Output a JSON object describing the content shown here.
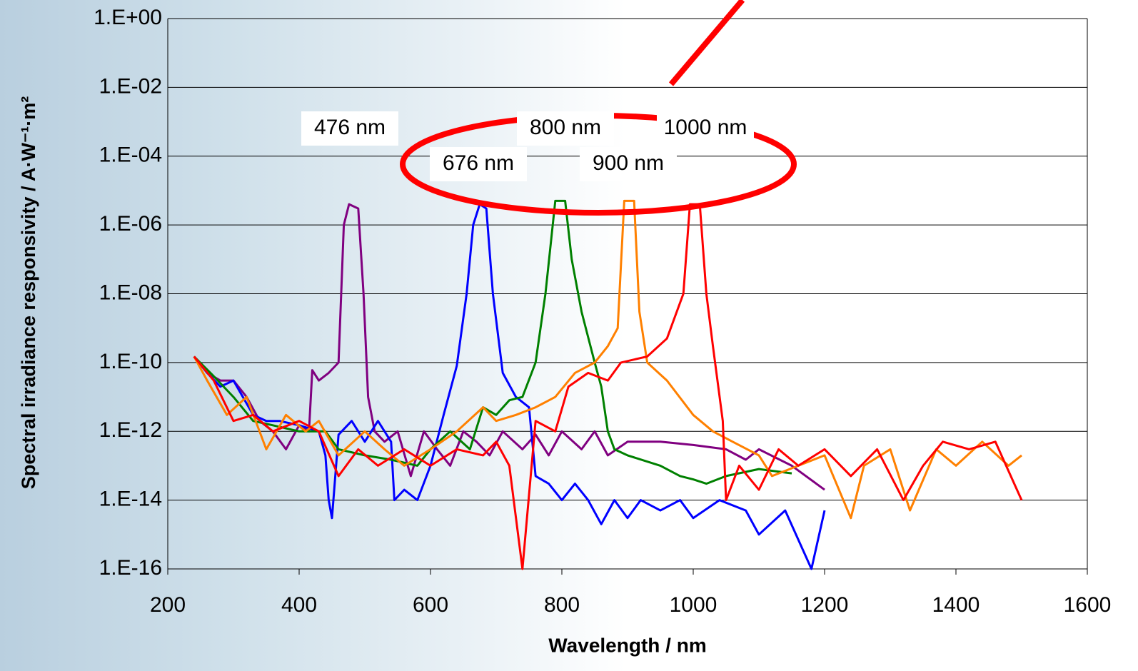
{
  "chart_data": {
    "type": "line",
    "xlabel": "Wavelength / nm",
    "ylabel": "Spectral irradiance responsivity / A·W⁻¹·m²",
    "xlim": [
      200,
      1600
    ],
    "xticks": [
      200,
      400,
      600,
      800,
      1000,
      1200,
      1400,
      1600
    ],
    "ylim": [
      1e-16,
      1
    ],
    "log_y": true,
    "grid": true,
    "yticks": [
      {
        "value": 1e-16,
        "label": "1.E-16"
      },
      {
        "value": 1e-14,
        "label": "1.E-14"
      },
      {
        "value": 1e-12,
        "label": "1.E-12"
      },
      {
        "value": 1e-10,
        "label": "1.E-10"
      },
      {
        "value": 1e-08,
        "label": "1.E-08"
      },
      {
        "value": 1e-06,
        "label": "1.E-06"
      },
      {
        "value": 0.0001,
        "label": "1.E-04"
      },
      {
        "value": 0.01,
        "label": "1.E-02"
      },
      {
        "value": 1,
        "label": "1.E+00"
      }
    ],
    "series": [
      {
        "name": "476 nm",
        "color": "#800080",
        "x": [
          240,
          260,
          280,
          300,
          320,
          340,
          360,
          380,
          400,
          415,
          420,
          430,
          445,
          460,
          468,
          476,
          490,
          498,
          505,
          515,
          530,
          550,
          570,
          590,
          610,
          630,
          650,
          670,
          690,
          710,
          740,
          760,
          780,
          800,
          830,
          850,
          870,
          900,
          950,
          1000,
          1050,
          1080,
          1100,
          1150,
          1200
        ],
        "values": [
          1.5e-10,
          5e-11,
          3e-11,
          3e-11,
          1e-11,
          2e-12,
          1e-12,
          3e-13,
          1.5e-12,
          1e-12,
          6e-11,
          3e-11,
          5e-11,
          1e-10,
          1e-06,
          4e-06,
          3e-06,
          1e-08,
          1e-11,
          1e-12,
          5e-13,
          1e-12,
          5e-14,
          1e-12,
          3e-13,
          1e-13,
          1e-12,
          5e-13,
          2e-13,
          1e-12,
          3e-13,
          8e-13,
          2e-13,
          1e-12,
          3e-13,
          1e-12,
          2e-13,
          5e-13,
          5e-13,
          4e-13,
          3e-13,
          1.5e-13,
          3e-13,
          1e-13,
          2e-14
        ]
      },
      {
        "name": "676 nm",
        "color": "#0000ff",
        "x": [
          240,
          260,
          280,
          300,
          330,
          350,
          370,
          400,
          430,
          440,
          445,
          450,
          460,
          480,
          500,
          520,
          540,
          545,
          560,
          580,
          600,
          620,
          640,
          655,
          665,
          675,
          685,
          695,
          710,
          730,
          750,
          760,
          780,
          800,
          820,
          840,
          860,
          880,
          900,
          920,
          950,
          980,
          1000,
          1040,
          1080,
          1100,
          1140,
          1180,
          1200
        ],
        "values": [
          1.5e-10,
          5e-11,
          2e-11,
          3e-11,
          3e-12,
          2e-12,
          2e-12,
          1.5e-12,
          1e-12,
          2e-13,
          1e-14,
          3e-15,
          8e-13,
          2e-12,
          5e-13,
          2e-12,
          5e-13,
          1e-14,
          2e-14,
          1e-14,
          1e-13,
          3e-12,
          8e-11,
          1e-08,
          1e-06,
          4e-06,
          3e-06,
          1e-08,
          5e-11,
          1e-11,
          5e-12,
          5e-14,
          3e-14,
          1e-14,
          3e-14,
          1e-14,
          2e-15,
          1e-14,
          3e-15,
          1e-14,
          5e-15,
          1e-14,
          3e-15,
          1e-14,
          5e-15,
          1e-15,
          5e-15,
          1e-16,
          5e-15
        ]
      },
      {
        "name": "800 nm",
        "color": "#008000",
        "x": [
          240,
          270,
          300,
          330,
          360,
          400,
          440,
          460,
          500,
          540,
          580,
          600,
          630,
          660,
          680,
          700,
          720,
          740,
          760,
          775,
          790,
          805,
          815,
          830,
          850,
          860,
          870,
          880,
          900,
          950,
          980,
          1000,
          1020,
          1050,
          1100,
          1150
        ],
        "values": [
          1.5e-10,
          4e-11,
          1e-11,
          2e-12,
          1.5e-12,
          1e-12,
          1e-12,
          3e-13,
          2e-13,
          1.5e-13,
          1e-13,
          3e-13,
          1e-12,
          3e-13,
          5e-12,
          3e-12,
          8e-12,
          1e-11,
          1e-10,
          1e-08,
          5e-06,
          5e-06,
          1e-07,
          3e-09,
          1e-10,
          2e-11,
          1e-12,
          3e-13,
          2e-13,
          1e-13,
          5e-14,
          4e-14,
          3e-14,
          5e-14,
          8e-14,
          6e-14
        ]
      },
      {
        "name": "900 nm",
        "color": "#ff8000",
        "x": [
          240,
          260,
          290,
          320,
          350,
          380,
          410,
          430,
          460,
          500,
          530,
          560,
          600,
          640,
          680,
          700,
          730,
          760,
          790,
          820,
          850,
          870,
          885,
          895,
          910,
          918,
          930,
          960,
          1000,
          1030,
          1060,
          1100,
          1120,
          1160,
          1200,
          1240,
          1260,
          1300,
          1330,
          1370,
          1400,
          1440,
          1480,
          1500
        ],
        "values": [
          1.5e-10,
          3e-11,
          3e-12,
          1e-11,
          3e-13,
          3e-12,
          1e-12,
          2e-12,
          2e-13,
          1e-12,
          3e-13,
          1e-13,
          3e-13,
          1e-12,
          5e-12,
          2e-12,
          3e-12,
          5e-12,
          1e-11,
          5e-11,
          1e-10,
          3e-10,
          1e-09,
          5e-06,
          5e-06,
          3e-09,
          1e-10,
          3e-11,
          3e-12,
          1e-12,
          5e-13,
          2e-13,
          5e-14,
          1e-13,
          2e-13,
          3e-15,
          1e-13,
          3e-13,
          5e-15,
          3e-13,
          1e-13,
          5e-13,
          1e-13,
          2e-13
        ]
      },
      {
        "name": "1000 nm",
        "color": "#ff0000",
        "x": [
          240,
          270,
          300,
          330,
          360,
          400,
          430,
          460,
          490,
          520,
          560,
          600,
          640,
          680,
          700,
          720,
          740,
          760,
          790,
          810,
          840,
          870,
          890,
          930,
          960,
          985,
          995,
          1010,
          1020,
          1030,
          1045,
          1050,
          1070,
          1100,
          1130,
          1160,
          1200,
          1240,
          1280,
          1320,
          1350,
          1380,
          1420,
          1460,
          1500
        ],
        "values": [
          1.5e-10,
          3e-11,
          2e-12,
          3e-12,
          1e-12,
          2e-12,
          1e-12,
          5e-14,
          3e-13,
          1e-13,
          3e-13,
          1e-13,
          3e-13,
          2e-13,
          5e-13,
          1e-13,
          1e-16,
          2e-12,
          1e-12,
          2e-11,
          5e-11,
          3e-11,
          1e-10,
          1.5e-10,
          5e-10,
          1e-08,
          4e-06,
          4e-06,
          1e-08,
          3e-10,
          2e-12,
          1e-14,
          1e-13,
          2e-14,
          3e-13,
          1e-13,
          3e-13,
          5e-14,
          3e-13,
          1e-14,
          1e-13,
          5e-13,
          3e-13,
          5e-13,
          1e-14
        ]
      }
    ]
  }
}
